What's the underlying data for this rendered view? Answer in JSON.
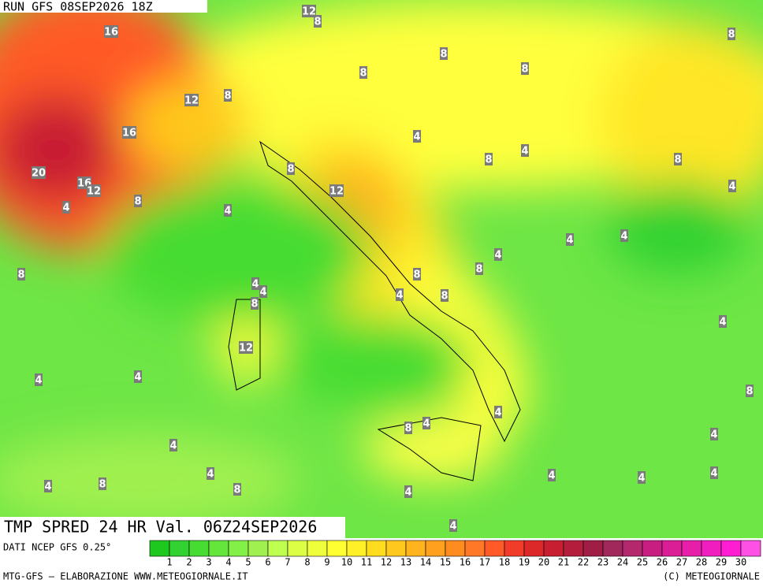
{
  "header": {
    "run": "RUN GFS 08SEP2026 18Z"
  },
  "map": {
    "labels": [
      12,
      8,
      16,
      8,
      8,
      8,
      8,
      12,
      8,
      16,
      4,
      4,
      8,
      8,
      8,
      20,
      16,
      12,
      12,
      4,
      8,
      4,
      4,
      4,
      4,
      4,
      8,
      8,
      8,
      4,
      4,
      8,
      4,
      8,
      4,
      12,
      4,
      4,
      8,
      4,
      4,
      8,
      4,
      4,
      4,
      4,
      4,
      4,
      4,
      8,
      8,
      4,
      4
    ]
  },
  "footer": {
    "field": "TMP SPRED 24 HR Val. 06Z24SEP2026",
    "source": "DATI NCEP GFS 0.25°",
    "credit": "MTG-GFS — ELABORAZIONE WWW.METEOGIORNALE.IT",
    "copyright": "(C) METEOGIORNALE"
  },
  "colorbar": {
    "labels": [
      1,
      2,
      3,
      4,
      5,
      6,
      7,
      8,
      9,
      10,
      11,
      12,
      13,
      14,
      15,
      16,
      17,
      18,
      19,
      20,
      21,
      22,
      23,
      24,
      25,
      26,
      27,
      28,
      29,
      30
    ],
    "colors": [
      "#1ec81e",
      "#32d232",
      "#46dc32",
      "#64e63c",
      "#82f046",
      "#a0f050",
      "#beff50",
      "#dcff46",
      "#f0ff3c",
      "#ffff32",
      "#fff028",
      "#ffdc1e",
      "#ffc81e",
      "#ffb41e",
      "#ffa01e",
      "#ff8c1e",
      "#ff7828",
      "#ff5a28",
      "#f03c28",
      "#dc2828",
      "#c81e32",
      "#b41e3c",
      "#a01e46",
      "#a0285a",
      "#b4286e",
      "#c81e82",
      "#dc1e96",
      "#e61eaa",
      "#f01ebe",
      "#ff1ed2",
      "#ff50e6"
    ]
  }
}
